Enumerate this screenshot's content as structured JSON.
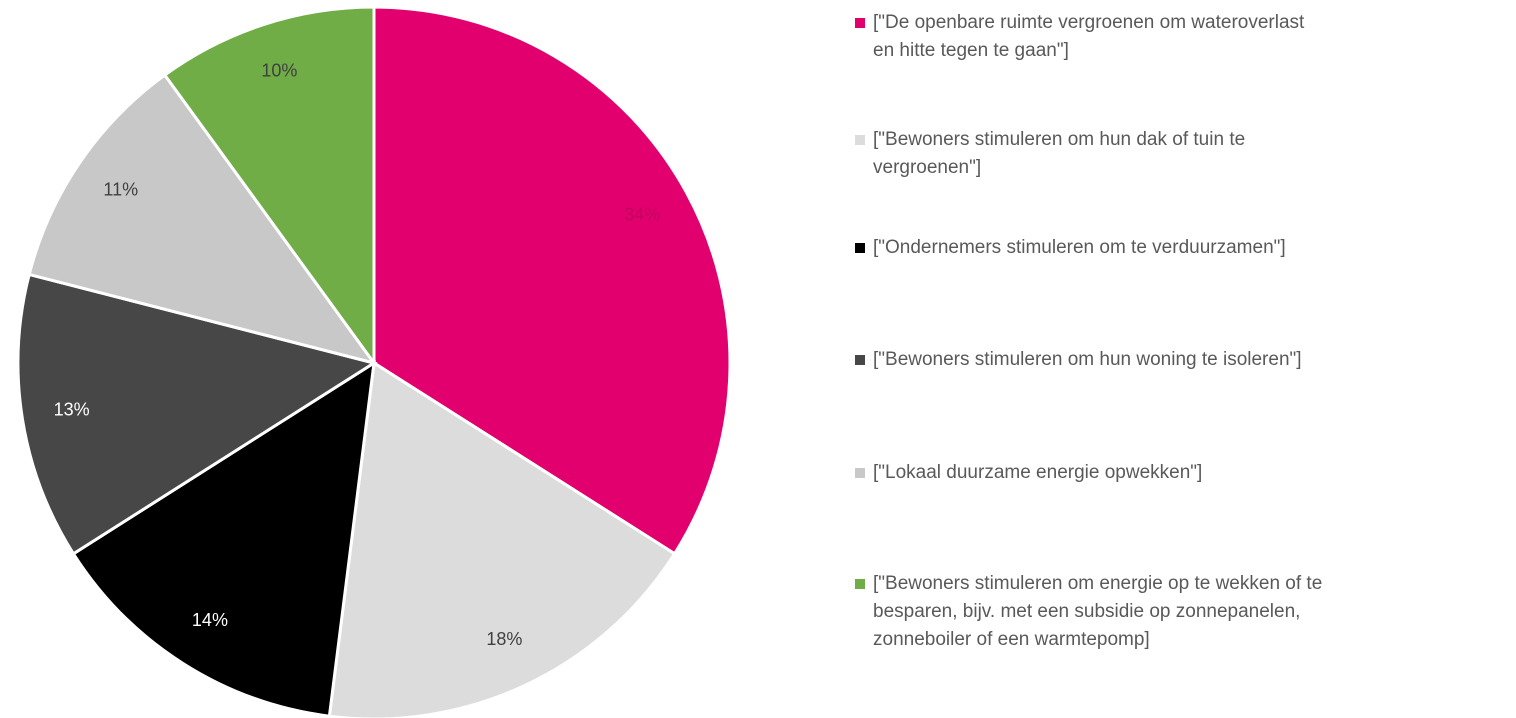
{
  "chart_data": {
    "type": "pie",
    "categories": [
      "[\"De openbare ruimte vergroenen om wateroverlast en hitte tegen te gaan\"]",
      "[\"Bewoners stimuleren om hun dak of tuin te vergroenen\"]",
      "[\"Ondernemers stimuleren om te verduurzamen\"]",
      "[\"Bewoners stimuleren om hun woning te isoleren\"]",
      "[\"Lokaal duurzame energie opwekken\"]",
      "[\"Bewoners stimuleren om energie op te wekken of te besparen, bijv. met een subsidie op zonnepanelen, zonneboiler of een warmtepomp]"
    ],
    "values": [
      34,
      18,
      14,
      13,
      11,
      10
    ],
    "value_labels": [
      "34%",
      "18%",
      "14%",
      "13%",
      "11%",
      "10%"
    ],
    "colors": [
      "#e2006f",
      "#dcdcdc",
      "#000000",
      "#474747",
      "#c8c8c8",
      "#70ad47"
    ],
    "legend": "right"
  }
}
